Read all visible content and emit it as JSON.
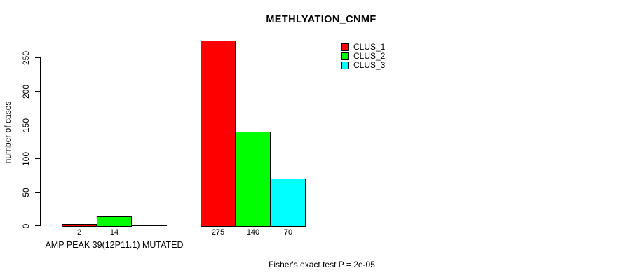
{
  "chart_data": {
    "type": "bar",
    "title": "METHLYATION_CNMF",
    "ylabel": "number of cases",
    "xlabel": "AMP PEAK 39(12P11.1) MUTATED",
    "annotation": "Fisher's exact test P = 2e-05",
    "ylim": [
      0,
      250
    ],
    "yticks": [
      0,
      50,
      100,
      150,
      200,
      250
    ],
    "grid": false,
    "legend_position": "top-right",
    "background": "#FFFFFF",
    "bar_border_color": "#000000",
    "series": [
      {
        "name": "CLUS_1",
        "color": "#FF0000"
      },
      {
        "name": "CLUS_2",
        "color": "#00FF00"
      },
      {
        "name": "CLUS_3",
        "color": "#00FFFF"
      }
    ],
    "groups": [
      {
        "label": "AMP PEAK 39(12P11.1) MUTATED",
        "values": [
          2,
          14,
          0
        ],
        "value_labels": [
          "2",
          "14",
          ""
        ]
      },
      {
        "label": "",
        "values": [
          275,
          140,
          70
        ],
        "value_labels": [
          "275",
          "140",
          "70"
        ]
      }
    ]
  }
}
